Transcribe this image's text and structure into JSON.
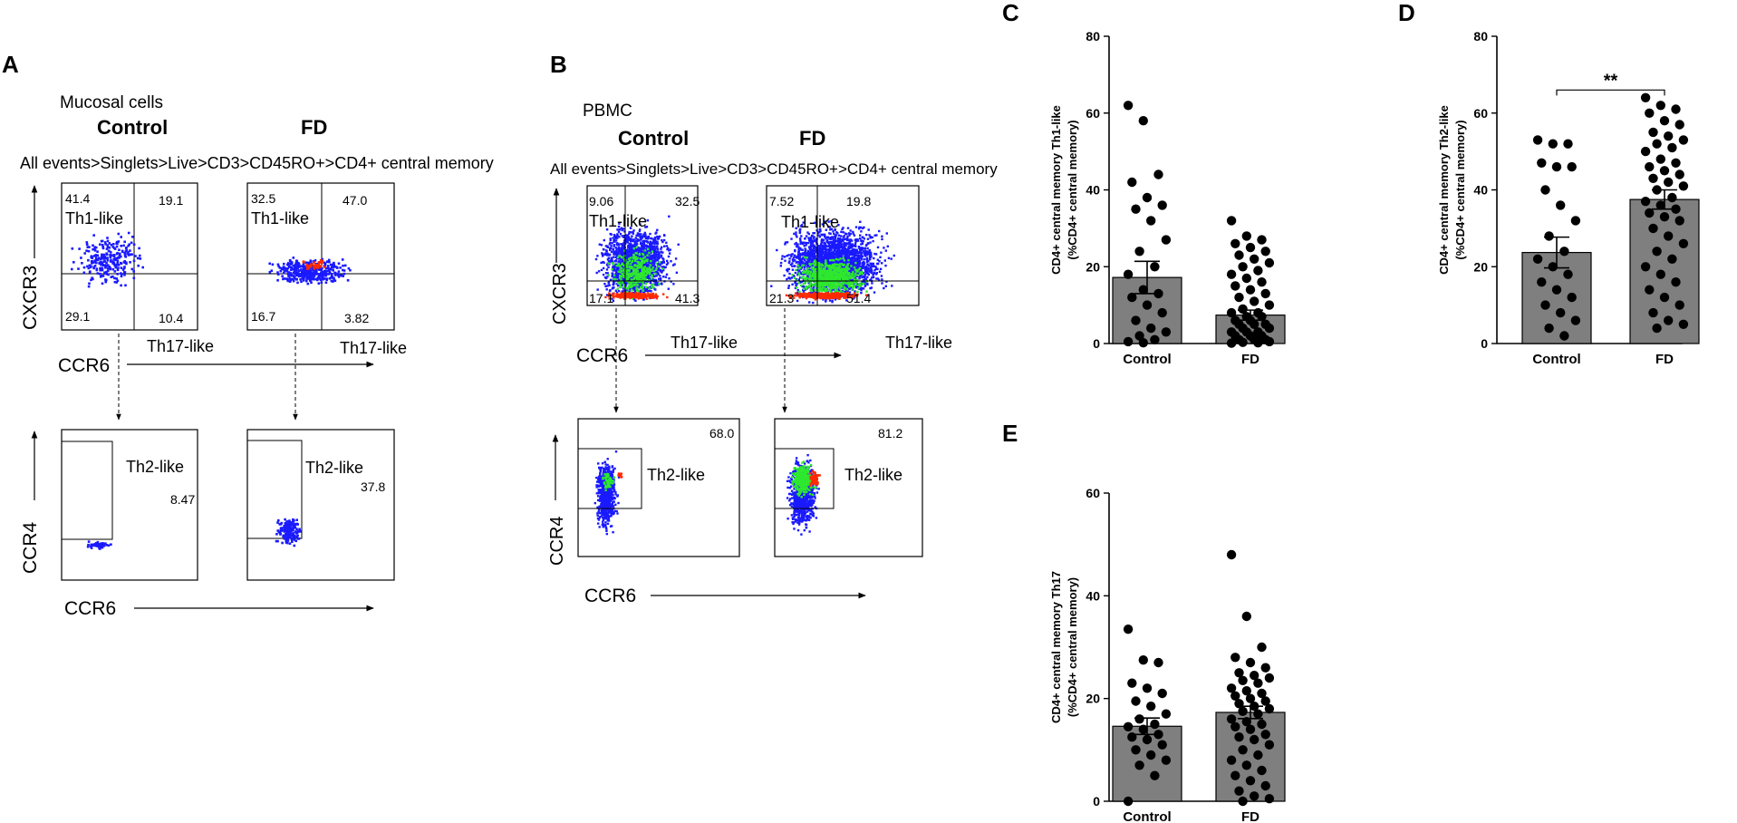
{
  "panels": {
    "A": {
      "letter": "A",
      "sample": "Mucosal cells",
      "groups": [
        "Control",
        "FD"
      ],
      "gating": "All events>Singlets>Live>CD3>CD45RO+>CD4+ central memory",
      "top_plots": [
        {
          "q_ul": "41.4",
          "q_ur": "19.1",
          "q_ll": "29.1",
          "q_lr": "10.4",
          "th1": "Th1-like",
          "th17": "Th17-like"
        },
        {
          "q_ul": "32.5",
          "q_ur": "47.0",
          "q_ll": "16.7",
          "q_lr": "3.82",
          "th1": "Th1-like",
          "th17": "Th17-like"
        }
      ],
      "bottom_plots": [
        {
          "gate_label": "Th2-like",
          "pct": "8.47"
        },
        {
          "gate_label": "Th2-like",
          "pct": "37.8"
        }
      ],
      "y_top": "CXCR3",
      "x_top": "CCR6",
      "y_bottom": "CCR4",
      "x_bottom": "CCR6"
    },
    "B": {
      "letter": "B",
      "sample": "PBMC",
      "groups": [
        "Control",
        "FD"
      ],
      "gating": "All events>Singlets>Live>CD3>CD45RO+>CD4+ central memory",
      "top_plots": [
        {
          "q_ul": "9.06",
          "q_ur": "32.5",
          "q_ll": "17.1",
          "q_lr": "41.3",
          "th1": "Th1-like",
          "th17": "Th17-like"
        },
        {
          "q_ul": "7.52",
          "q_ur": "19.8",
          "q_ll": "21.3",
          "q_lr": "51.4",
          "th1": "Th1-like",
          "th17": "Th17-like"
        }
      ],
      "bottom_plots": [
        {
          "gate_label": "Th2-like",
          "pct": "68.0"
        },
        {
          "gate_label": "Th2-like",
          "pct": "81.2"
        }
      ],
      "y_top": "CXCR3",
      "x_top": "CCR6",
      "y_bottom": "CCR4",
      "x_bottom": "CCR6"
    }
  },
  "colors": {
    "bar": "#7f7f7f",
    "dot": "#000000",
    "flow_low": "#1a1aff",
    "flow_mid": "#2ee82e",
    "flow_high": "#ff2a00"
  },
  "chart_data": [
    {
      "letter": "C",
      "type": "bar",
      "ylabel": "CD4+ central memory Th1-like",
      "ylabel2": "(%CD4+ central memory)",
      "categories": [
        "Control",
        "FD"
      ],
      "means": [
        17.2,
        7.4
      ],
      "sems": [
        4.2,
        1.3
      ],
      "ylim": [
        0,
        80
      ],
      "yticks": [
        0,
        20,
        40,
        60,
        80
      ],
      "significance": "",
      "points": [
        [
          62,
          58,
          44,
          42,
          38,
          36,
          35,
          32,
          27,
          24,
          20,
          18,
          14,
          13,
          12,
          10,
          8,
          6,
          4,
          3,
          2,
          1,
          0.5,
          0.2
        ],
        [
          32,
          28,
          27,
          26,
          25,
          24,
          23,
          22,
          21,
          20,
          19,
          18,
          17,
          16,
          15,
          14,
          13,
          12,
          11,
          10,
          9,
          8,
          8,
          7,
          7,
          6,
          6,
          5,
          5,
          5,
          4,
          4,
          3,
          3,
          3,
          2,
          2,
          2,
          1,
          1,
          1,
          0.5,
          0.3,
          0.2,
          0.1
        ]
      ]
    },
    {
      "letter": "D",
      "type": "bar",
      "ylabel": "CD4+ central memory Th2-like",
      "ylabel2": "(%CD4+ central memory)",
      "categories": [
        "Control",
        "FD"
      ],
      "means": [
        23.7,
        37.5
      ],
      "sems": [
        4.0,
        2.5
      ],
      "ylim": [
        0,
        80
      ],
      "yticks": [
        0,
        20,
        40,
        60,
        80
      ],
      "significance": "**",
      "points": [
        [
          53,
          52,
          52,
          47,
          46,
          46,
          40,
          36,
          32,
          28,
          24,
          22,
          20,
          18,
          16,
          14,
          12,
          10,
          8,
          6,
          4,
          2
        ],
        [
          64,
          62,
          61,
          60,
          58,
          57,
          55,
          54,
          53,
          52,
          51,
          50,
          48,
          47,
          46,
          45,
          44,
          43,
          42,
          41,
          40,
          38,
          37,
          36,
          35,
          34,
          33,
          32,
          30,
          28,
          26,
          24,
          22,
          20,
          18,
          16,
          14,
          12,
          10,
          8,
          6,
          5,
          4
        ]
      ]
    },
    {
      "letter": "E",
      "type": "bar",
      "ylabel": "CD4+ central memory Th17",
      "ylabel2": "(%CD4+ central memory)",
      "categories": [
        "Control",
        "FD"
      ],
      "means": [
        14.6,
        17.3
      ],
      "sems": [
        1.6,
        1.2
      ],
      "ylim": [
        0,
        60
      ],
      "yticks": [
        0,
        20,
        40,
        60
      ],
      "significance": "",
      "points": [
        [
          33.5,
          27.5,
          27,
          23,
          22,
          21,
          19.5,
          18.5,
          17,
          16,
          15,
          14.5,
          14,
          13,
          12.5,
          12,
          11,
          10,
          9,
          8,
          7,
          5,
          0
        ],
        [
          48,
          36,
          30,
          28,
          27,
          26,
          25,
          24.5,
          24,
          23.5,
          23,
          22,
          21.5,
          21,
          20.5,
          20,
          19.5,
          19,
          18.5,
          18,
          17.5,
          17,
          16,
          15.5,
          15,
          14.5,
          14,
          13,
          12.5,
          12,
          11,
          10,
          9,
          8,
          7,
          6,
          5,
          4,
          3,
          2,
          1,
          0.5,
          0
        ]
      ]
    }
  ]
}
